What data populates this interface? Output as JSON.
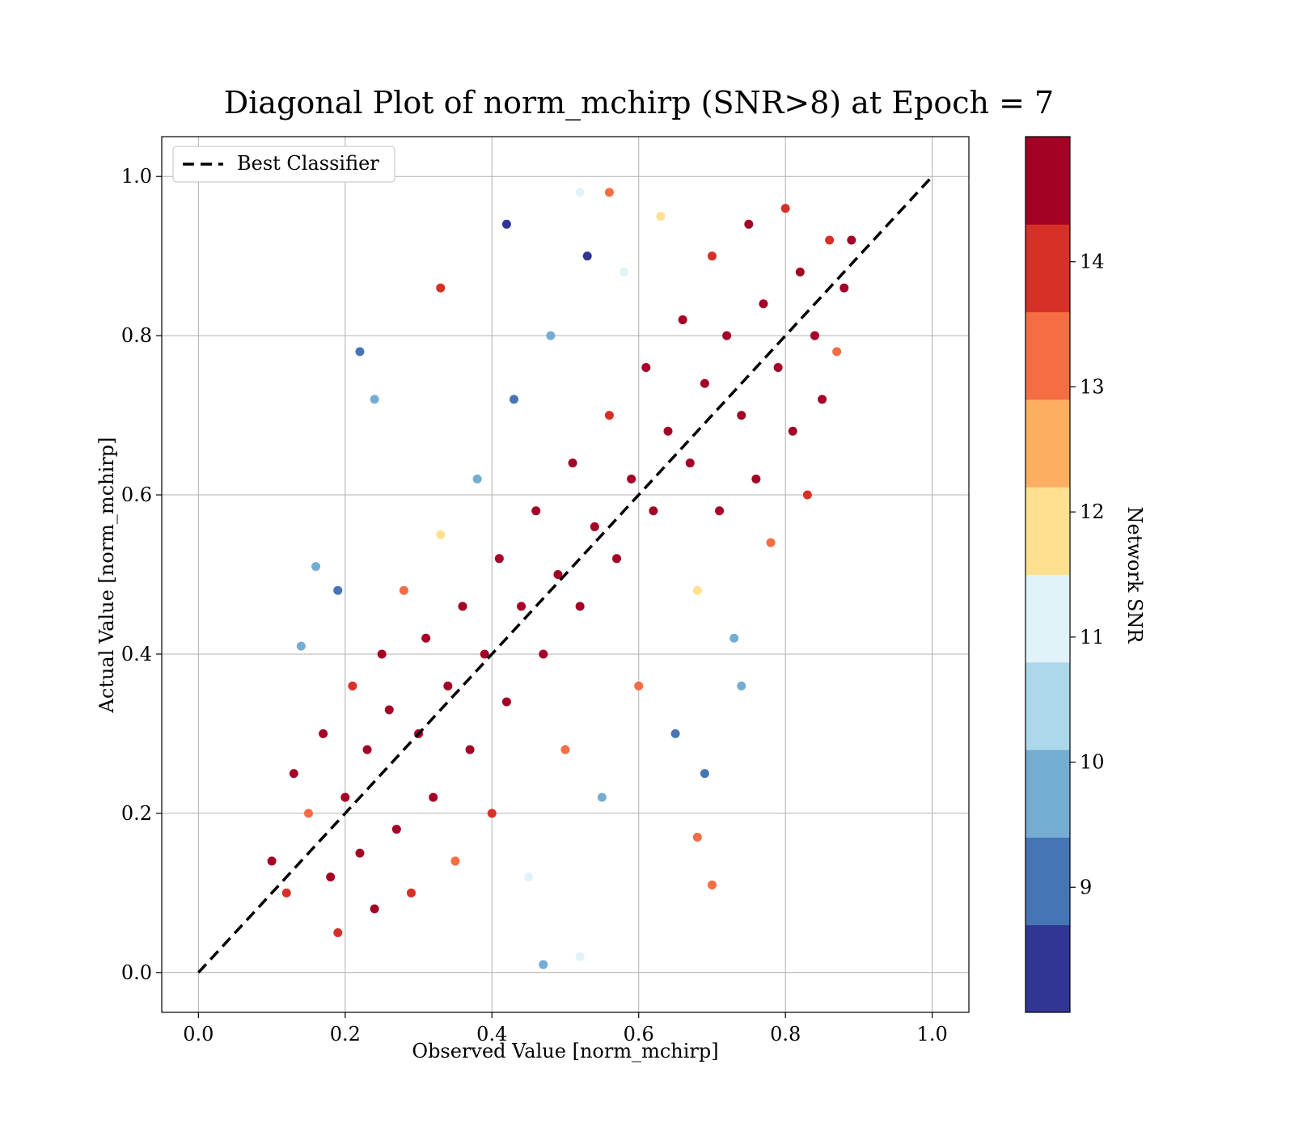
{
  "chart_data": {
    "type": "scatter",
    "title": "Diagonal Plot of norm_mchirp (SNR>8) at Epoch = 7",
    "xlabel": "Observed Value [norm_mchirp]",
    "ylabel": "Actual Value [norm_mchirp]",
    "xlim": [
      -0.05,
      1.05
    ],
    "ylim": [
      -0.05,
      1.05
    ],
    "xticks": [
      "0.0",
      "0.2",
      "0.4",
      "0.6",
      "0.8",
      "1.0"
    ],
    "yticks": [
      "0.0",
      "0.2",
      "0.4",
      "0.6",
      "0.8",
      "1.0"
    ],
    "grid": true,
    "legend": {
      "location": "top-left",
      "entries": [
        "Best Classifier"
      ]
    },
    "reference_line": {
      "name": "Best Classifier",
      "x": [
        0,
        1
      ],
      "y": [
        0,
        1
      ],
      "style": "dashed",
      "color": "#000000"
    },
    "colorbar": {
      "label": "Network SNR",
      "range": [
        8,
        15
      ],
      "ticks": [
        "9",
        "10",
        "11",
        "12",
        "13",
        "14"
      ],
      "tick_values": [
        9,
        10,
        11,
        12,
        13,
        14
      ],
      "colors": [
        "#313695",
        "#4575b4",
        "#74add1",
        "#abd9e9",
        "#e0f3f8",
        "#fee090",
        "#fdae61",
        "#f46d43",
        "#d73027",
        "#a50026"
      ]
    },
    "points": [
      {
        "x": 0.1,
        "y": 0.14,
        "c": 15
      },
      {
        "x": 0.12,
        "y": 0.1,
        "c": 14
      },
      {
        "x": 0.13,
        "y": 0.25,
        "c": 15
      },
      {
        "x": 0.15,
        "y": 0.2,
        "c": 13
      },
      {
        "x": 0.17,
        "y": 0.3,
        "c": 15
      },
      {
        "x": 0.18,
        "y": 0.12,
        "c": 15
      },
      {
        "x": 0.19,
        "y": 0.05,
        "c": 14
      },
      {
        "x": 0.2,
        "y": 0.22,
        "c": 15
      },
      {
        "x": 0.21,
        "y": 0.36,
        "c": 14
      },
      {
        "x": 0.22,
        "y": 0.15,
        "c": 15
      },
      {
        "x": 0.23,
        "y": 0.28,
        "c": 15
      },
      {
        "x": 0.24,
        "y": 0.08,
        "c": 15
      },
      {
        "x": 0.25,
        "y": 0.4,
        "c": 15
      },
      {
        "x": 0.26,
        "y": 0.33,
        "c": 15
      },
      {
        "x": 0.27,
        "y": 0.18,
        "c": 15
      },
      {
        "x": 0.28,
        "y": 0.48,
        "c": 13
      },
      {
        "x": 0.29,
        "y": 0.1,
        "c": 14
      },
      {
        "x": 0.3,
        "y": 0.3,
        "c": 15
      },
      {
        "x": 0.31,
        "y": 0.42,
        "c": 15
      },
      {
        "x": 0.32,
        "y": 0.22,
        "c": 15
      },
      {
        "x": 0.33,
        "y": 0.55,
        "c": 12
      },
      {
        "x": 0.34,
        "y": 0.36,
        "c": 15
      },
      {
        "x": 0.35,
        "y": 0.14,
        "c": 13
      },
      {
        "x": 0.36,
        "y": 0.46,
        "c": 15
      },
      {
        "x": 0.37,
        "y": 0.28,
        "c": 15
      },
      {
        "x": 0.38,
        "y": 0.62,
        "c": 10
      },
      {
        "x": 0.39,
        "y": 0.4,
        "c": 15
      },
      {
        "x": 0.4,
        "y": 0.2,
        "c": 14
      },
      {
        "x": 0.41,
        "y": 0.52,
        "c": 15
      },
      {
        "x": 0.42,
        "y": 0.34,
        "c": 15
      },
      {
        "x": 0.43,
        "y": 0.72,
        "c": 9
      },
      {
        "x": 0.44,
        "y": 0.46,
        "c": 15
      },
      {
        "x": 0.45,
        "y": 0.12,
        "c": 11
      },
      {
        "x": 0.46,
        "y": 0.58,
        "c": 15
      },
      {
        "x": 0.47,
        "y": 0.4,
        "c": 15
      },
      {
        "x": 0.48,
        "y": 0.8,
        "c": 10
      },
      {
        "x": 0.49,
        "y": 0.5,
        "c": 15
      },
      {
        "x": 0.5,
        "y": 0.28,
        "c": 13
      },
      {
        "x": 0.51,
        "y": 0.64,
        "c": 15
      },
      {
        "x": 0.52,
        "y": 0.46,
        "c": 15
      },
      {
        "x": 0.53,
        "y": 0.9,
        "c": 8
      },
      {
        "x": 0.54,
        "y": 0.56,
        "c": 15
      },
      {
        "x": 0.55,
        "y": 0.22,
        "c": 10
      },
      {
        "x": 0.56,
        "y": 0.7,
        "c": 14
      },
      {
        "x": 0.57,
        "y": 0.52,
        "c": 15
      },
      {
        "x": 0.58,
        "y": 0.88,
        "c": 11
      },
      {
        "x": 0.59,
        "y": 0.62,
        "c": 15
      },
      {
        "x": 0.6,
        "y": 0.36,
        "c": 13
      },
      {
        "x": 0.61,
        "y": 0.76,
        "c": 15
      },
      {
        "x": 0.62,
        "y": 0.58,
        "c": 15
      },
      {
        "x": 0.63,
        "y": 0.95,
        "c": 12
      },
      {
        "x": 0.64,
        "y": 0.68,
        "c": 15
      },
      {
        "x": 0.65,
        "y": 0.3,
        "c": 9
      },
      {
        "x": 0.66,
        "y": 0.82,
        "c": 15
      },
      {
        "x": 0.67,
        "y": 0.64,
        "c": 15
      },
      {
        "x": 0.68,
        "y": 0.48,
        "c": 12
      },
      {
        "x": 0.69,
        "y": 0.74,
        "c": 15
      },
      {
        "x": 0.7,
        "y": 0.9,
        "c": 14
      },
      {
        "x": 0.71,
        "y": 0.58,
        "c": 15
      },
      {
        "x": 0.72,
        "y": 0.8,
        "c": 15
      },
      {
        "x": 0.73,
        "y": 0.42,
        "c": 10
      },
      {
        "x": 0.74,
        "y": 0.7,
        "c": 15
      },
      {
        "x": 0.75,
        "y": 0.94,
        "c": 15
      },
      {
        "x": 0.76,
        "y": 0.62,
        "c": 15
      },
      {
        "x": 0.77,
        "y": 0.84,
        "c": 15
      },
      {
        "x": 0.78,
        "y": 0.54,
        "c": 13
      },
      {
        "x": 0.79,
        "y": 0.76,
        "c": 15
      },
      {
        "x": 0.8,
        "y": 0.96,
        "c": 14
      },
      {
        "x": 0.81,
        "y": 0.68,
        "c": 15
      },
      {
        "x": 0.82,
        "y": 0.88,
        "c": 15
      },
      {
        "x": 0.83,
        "y": 0.6,
        "c": 14
      },
      {
        "x": 0.84,
        "y": 0.8,
        "c": 15
      },
      {
        "x": 0.85,
        "y": 0.72,
        "c": 15
      },
      {
        "x": 0.86,
        "y": 0.92,
        "c": 14
      },
      {
        "x": 0.87,
        "y": 0.78,
        "c": 13
      },
      {
        "x": 0.88,
        "y": 0.86,
        "c": 15
      },
      {
        "x": 0.89,
        "y": 0.92,
        "c": 15
      },
      {
        "x": 0.22,
        "y": 0.78,
        "c": 9
      },
      {
        "x": 0.24,
        "y": 0.72,
        "c": 10
      },
      {
        "x": 0.19,
        "y": 0.48,
        "c": 9
      },
      {
        "x": 0.33,
        "y": 0.86,
        "c": 14
      },
      {
        "x": 0.42,
        "y": 0.94,
        "c": 8
      },
      {
        "x": 0.52,
        "y": 0.98,
        "c": 11
      },
      {
        "x": 0.56,
        "y": 0.98,
        "c": 13
      },
      {
        "x": 0.7,
        "y": 0.11,
        "c": 13
      },
      {
        "x": 0.68,
        "y": 0.17,
        "c": 13
      },
      {
        "x": 0.74,
        "y": 0.36,
        "c": 10
      },
      {
        "x": 0.69,
        "y": 0.25,
        "c": 9
      },
      {
        "x": 0.47,
        "y": 0.01,
        "c": 10
      },
      {
        "x": 0.52,
        "y": 0.02,
        "c": 11
      },
      {
        "x": 0.16,
        "y": 0.51,
        "c": 10
      },
      {
        "x": 0.14,
        "y": 0.41,
        "c": 10
      }
    ]
  }
}
